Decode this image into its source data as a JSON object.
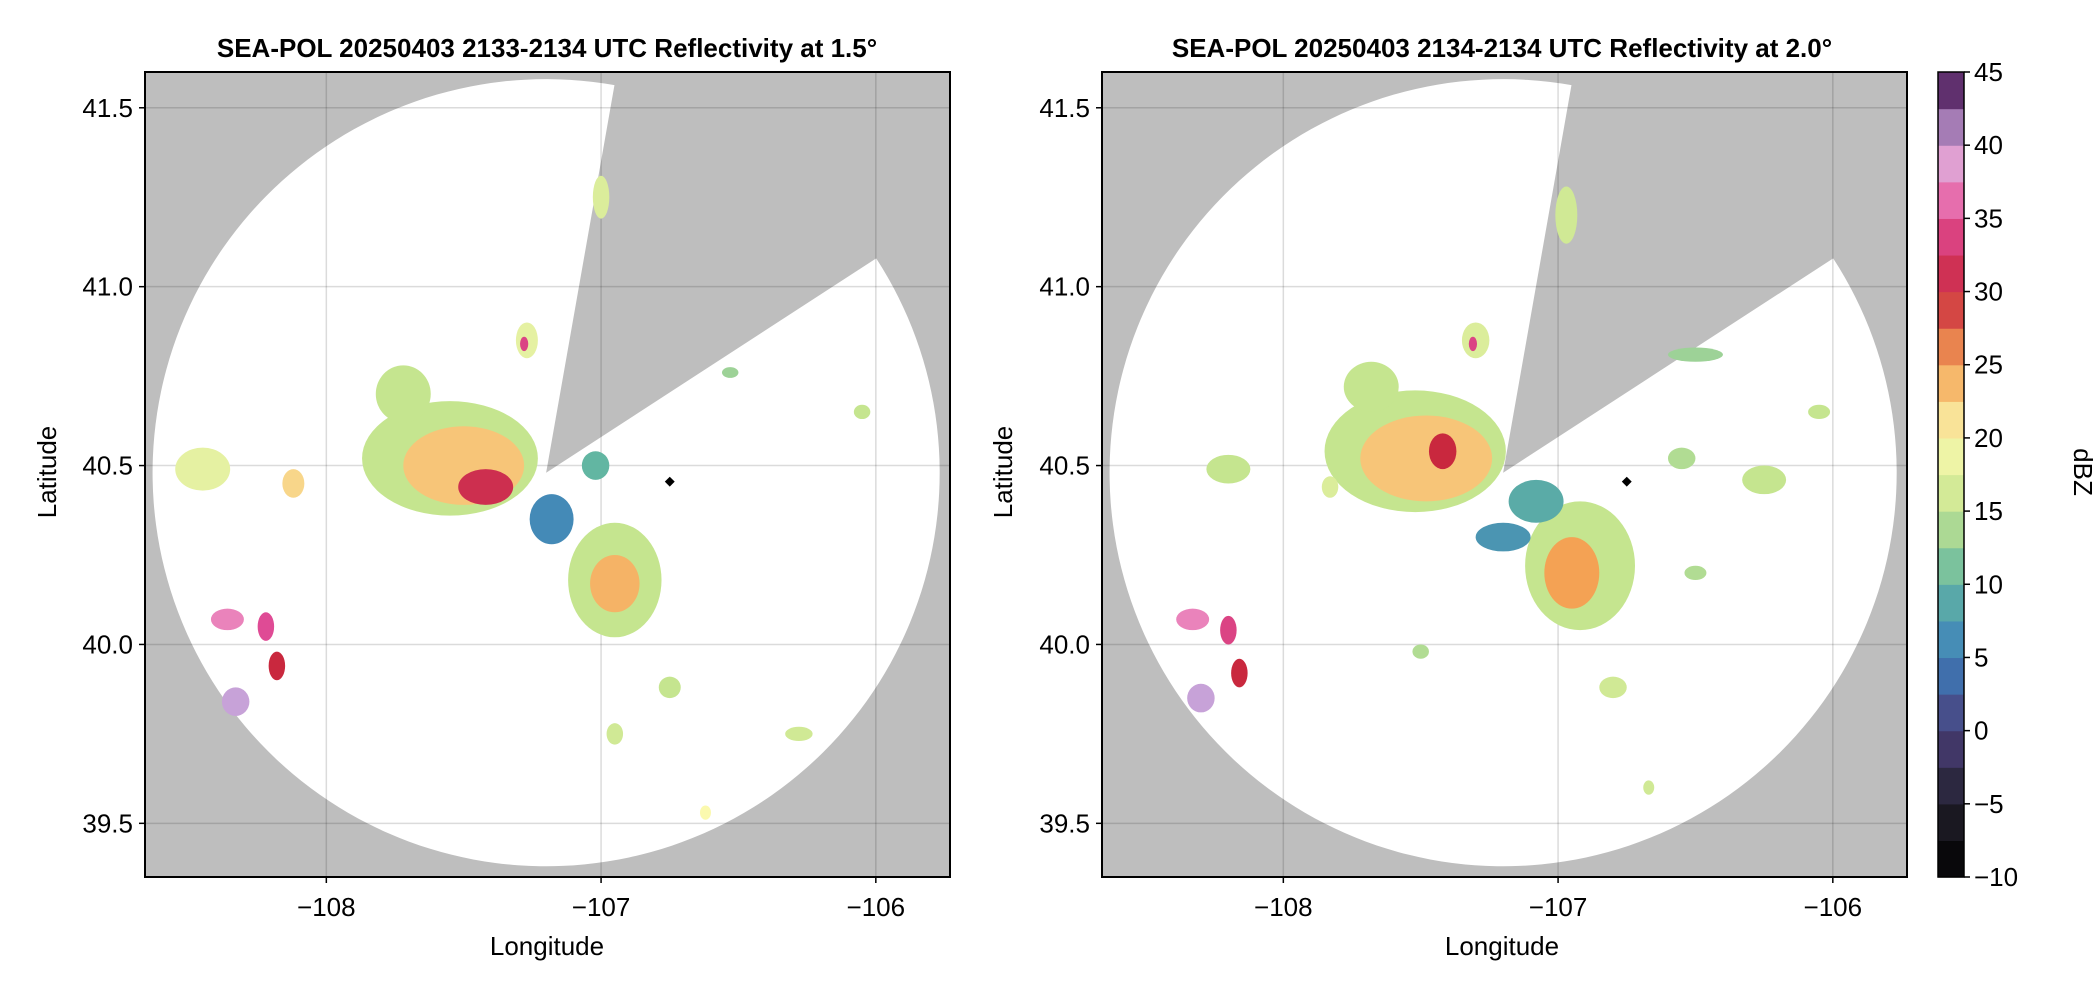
{
  "chart_data": [
    {
      "type": "heatmap",
      "title": "SEA-POL 20250403 2133-2134 UTC Reflectivity at 1.5°",
      "xlabel": "Longitude",
      "ylabel": "Latitude",
      "xlim": [
        -108.66,
        -105.73
      ],
      "ylim": [
        39.35,
        41.6
      ],
      "xticks": [
        -108,
        -107,
        -106
      ],
      "xtick_labels": [
        "−108",
        "−107",
        "−106"
      ],
      "yticks": [
        39.5,
        40.0,
        40.5,
        41.0,
        41.5
      ],
      "ytick_labels": [
        "39.5",
        "40.0",
        "40.5",
        "41.0",
        "41.5"
      ],
      "grid": true,
      "background_color": "#bebebe",
      "radar": {
        "lon": -107.2,
        "lat": 40.48,
        "range_deg_lat": 1.1,
        "blocked_sectors_az": [
          [
            10,
            57
          ]
        ]
      },
      "marker": {
        "lon": -106.75,
        "lat": 40.455
      },
      "echoes": [
        {
          "lon": -107.55,
          "lat": 40.52,
          "dlon": 0.32,
          "dlat": 0.16,
          "dbz": 15
        },
        {
          "lon": -107.5,
          "lat": 40.5,
          "dlon": 0.22,
          "dlat": 0.11,
          "dbz": 23
        },
        {
          "lon": -107.42,
          "lat": 40.44,
          "dlon": 0.1,
          "dlat": 0.05,
          "dbz": 31
        },
        {
          "lon": -107.72,
          "lat": 40.7,
          "dlon": 0.1,
          "dlat": 0.08,
          "dbz": 15
        },
        {
          "lon": -106.95,
          "lat": 40.18,
          "dlon": 0.17,
          "dlat": 0.16,
          "dbz": 15
        },
        {
          "lon": -106.95,
          "lat": 40.17,
          "dlon": 0.09,
          "dlat": 0.08,
          "dbz": 24
        },
        {
          "lon": -107.18,
          "lat": 40.35,
          "dlon": 0.08,
          "dlat": 0.07,
          "dbz": 6
        },
        {
          "lon": -107.02,
          "lat": 40.5,
          "dlon": 0.05,
          "dlat": 0.04,
          "dbz": 10
        },
        {
          "lon": -108.36,
          "lat": 40.07,
          "dlon": 0.06,
          "dlat": 0.03,
          "dbz": 37
        },
        {
          "lon": -108.22,
          "lat": 40.05,
          "dlon": 0.03,
          "dlat": 0.04,
          "dbz": 35
        },
        {
          "lon": -108.18,
          "lat": 39.94,
          "dlon": 0.03,
          "dlat": 0.04,
          "dbz": 30
        },
        {
          "lon": -108.33,
          "lat": 39.84,
          "dlon": 0.05,
          "dlat": 0.04,
          "dbz": 40
        },
        {
          "lon": -108.45,
          "lat": 40.49,
          "dlon": 0.1,
          "dlat": 0.06,
          "dbz": 18
        },
        {
          "lon": -108.12,
          "lat": 40.45,
          "dlon": 0.04,
          "dlat": 0.04,
          "dbz": 22
        },
        {
          "lon": -107.27,
          "lat": 40.85,
          "dlon": 0.04,
          "dlat": 0.05,
          "dbz": 18
        },
        {
          "lon": -107.28,
          "lat": 40.84,
          "dlon": 0.015,
          "dlat": 0.02,
          "dbz": 34
        },
        {
          "lon": -107.0,
          "lat": 41.25,
          "dlon": 0.03,
          "dlat": 0.06,
          "dbz": 17
        },
        {
          "lon": -106.95,
          "lat": 39.75,
          "dlon": 0.03,
          "dlat": 0.03,
          "dbz": 16
        },
        {
          "lon": -106.28,
          "lat": 39.75,
          "dlon": 0.05,
          "dlat": 0.02,
          "dbz": 16
        },
        {
          "lon": -106.62,
          "lat": 39.53,
          "dlon": 0.02,
          "dlat": 0.02,
          "dbz": 20
        },
        {
          "lon": -106.05,
          "lat": 40.65,
          "dlon": 0.03,
          "dlat": 0.02,
          "dbz": 15
        },
        {
          "lon": -106.53,
          "lat": 40.76,
          "dlon": 0.03,
          "dlat": 0.015,
          "dbz": 13
        },
        {
          "lon": -106.75,
          "lat": 39.88,
          "dlon": 0.04,
          "dlat": 0.03,
          "dbz": 15
        }
      ]
    },
    {
      "type": "heatmap",
      "title": "SEA-POL 20250403 2134-2134 UTC Reflectivity at 2.0°",
      "xlabel": "Longitude",
      "ylabel": "Latitude",
      "xlim": [
        -108.66,
        -105.73
      ],
      "ylim": [
        39.35,
        41.6
      ],
      "xticks": [
        -108,
        -107,
        -106
      ],
      "xtick_labels": [
        "−108",
        "−107",
        "−106"
      ],
      "yticks": [
        39.5,
        40.0,
        40.5,
        41.0,
        41.5
      ],
      "ytick_labels": [
        "39.5",
        "40.0",
        "40.5",
        "41.0",
        "41.5"
      ],
      "grid": true,
      "background_color": "#bebebe",
      "radar": {
        "lon": -107.2,
        "lat": 40.48,
        "range_deg_lat": 1.1,
        "blocked_sectors_az": [
          [
            10,
            57
          ]
        ]
      },
      "marker": {
        "lon": -106.75,
        "lat": 40.455
      },
      "echoes": [
        {
          "lon": -107.52,
          "lat": 40.54,
          "dlon": 0.33,
          "dlat": 0.17,
          "dbz": 15
        },
        {
          "lon": -107.48,
          "lat": 40.52,
          "dlon": 0.24,
          "dlat": 0.12,
          "dbz": 23
        },
        {
          "lon": -107.42,
          "lat": 40.54,
          "dlon": 0.05,
          "dlat": 0.05,
          "dbz": 30
        },
        {
          "lon": -107.68,
          "lat": 40.72,
          "dlon": 0.1,
          "dlat": 0.07,
          "dbz": 15
        },
        {
          "lon": -106.92,
          "lat": 40.22,
          "dlon": 0.2,
          "dlat": 0.18,
          "dbz": 15
        },
        {
          "lon": -106.95,
          "lat": 40.2,
          "dlon": 0.1,
          "dlat": 0.1,
          "dbz": 25
        },
        {
          "lon": -107.08,
          "lat": 40.4,
          "dlon": 0.1,
          "dlat": 0.06,
          "dbz": 9
        },
        {
          "lon": -107.2,
          "lat": 40.3,
          "dlon": 0.1,
          "dlat": 0.04,
          "dbz": 7
        },
        {
          "lon": -108.33,
          "lat": 40.07,
          "dlon": 0.06,
          "dlat": 0.03,
          "dbz": 37
        },
        {
          "lon": -108.2,
          "lat": 40.04,
          "dlon": 0.03,
          "dlat": 0.04,
          "dbz": 34
        },
        {
          "lon": -108.16,
          "lat": 39.92,
          "dlon": 0.03,
          "dlat": 0.04,
          "dbz": 30
        },
        {
          "lon": -108.3,
          "lat": 39.85,
          "dlon": 0.05,
          "dlat": 0.04,
          "dbz": 40
        },
        {
          "lon": -108.2,
          "lat": 40.49,
          "dlon": 0.08,
          "dlat": 0.04,
          "dbz": 15
        },
        {
          "lon": -107.83,
          "lat": 40.44,
          "dlon": 0.03,
          "dlat": 0.03,
          "dbz": 17
        },
        {
          "lon": -107.3,
          "lat": 40.85,
          "dlon": 0.05,
          "dlat": 0.05,
          "dbz": 17
        },
        {
          "lon": -107.31,
          "lat": 40.84,
          "dlon": 0.015,
          "dlat": 0.02,
          "dbz": 34
        },
        {
          "lon": -106.97,
          "lat": 41.2,
          "dlon": 0.04,
          "dlat": 0.08,
          "dbz": 16
        },
        {
          "lon": -106.25,
          "lat": 40.46,
          "dlon": 0.08,
          "dlat": 0.04,
          "dbz": 15
        },
        {
          "lon": -106.55,
          "lat": 40.52,
          "dlon": 0.05,
          "dlat": 0.03,
          "dbz": 14
        },
        {
          "lon": -106.05,
          "lat": 40.65,
          "dlon": 0.04,
          "dlat": 0.02,
          "dbz": 15
        },
        {
          "lon": -106.5,
          "lat": 40.81,
          "dlon": 0.1,
          "dlat": 0.02,
          "dbz": 13
        },
        {
          "lon": -106.8,
          "lat": 39.88,
          "dlon": 0.05,
          "dlat": 0.03,
          "dbz": 16
        },
        {
          "lon": -106.5,
          "lat": 40.2,
          "dlon": 0.04,
          "dlat": 0.02,
          "dbz": 14
        },
        {
          "lon": -106.67,
          "lat": 39.6,
          "dlon": 0.02,
          "dlat": 0.02,
          "dbz": 16
        },
        {
          "lon": -107.5,
          "lat": 39.98,
          "dlon": 0.03,
          "dlat": 0.02,
          "dbz": 14
        }
      ]
    }
  ],
  "colorbar": {
    "label": "dBZ",
    "min": -10,
    "max": 45,
    "levels": 22,
    "ticks": [
      -10,
      -5,
      0,
      5,
      10,
      15,
      20,
      25,
      30,
      35,
      40,
      45
    ],
    "tick_labels": [
      "−10",
      "−5",
      "0",
      "5",
      "10",
      "15",
      "20",
      "25",
      "30",
      "35",
      "40",
      "45"
    ],
    "stops": [
      {
        "v": -10,
        "c": "#000000"
      },
      {
        "v": -5,
        "c": "#22202c"
      },
      {
        "v": 0,
        "c": "#4b3f7a"
      },
      {
        "v": 5,
        "c": "#3c7fbc"
      },
      {
        "v": 10,
        "c": "#62b6a2"
      },
      {
        "v": 15,
        "c": "#c5e58f"
      },
      {
        "v": 20,
        "c": "#fbf9ae"
      },
      {
        "v": 25,
        "c": "#f4a254"
      },
      {
        "v": 30,
        "c": "#c9283e"
      },
      {
        "v": 35,
        "c": "#df4b95"
      },
      {
        "v": 38,
        "c": "#ef9fce"
      },
      {
        "v": 40,
        "c": "#c7a2d8"
      },
      {
        "v": 45,
        "c": "#3d0a4b"
      }
    ]
  }
}
